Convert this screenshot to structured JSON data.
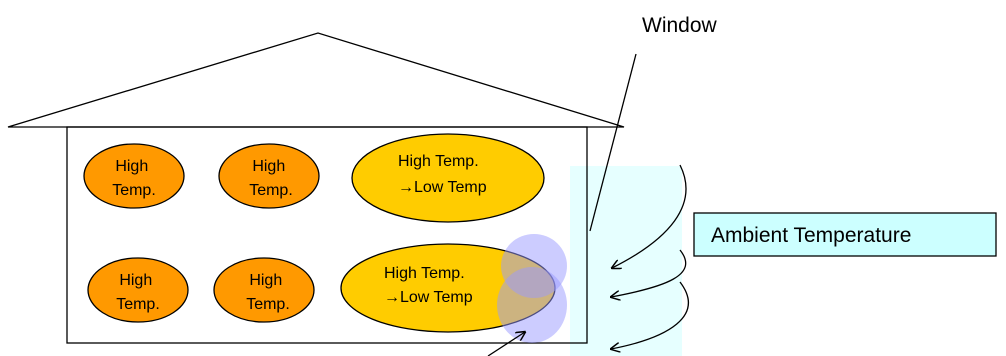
{
  "labels": {
    "window": "Window",
    "ambient_temperature": "Ambient Temperature"
  },
  "zones": {
    "top_left": {
      "line1": "High",
      "line2": "Temp."
    },
    "top_middle": {
      "line1": "High",
      "line2": "Temp."
    },
    "top_right": {
      "line1": "High Temp.",
      "line2": "→Low Temp"
    },
    "bottom_left": {
      "line1": "High",
      "line2": "Temp."
    },
    "bottom_middle": {
      "line1": "High",
      "line2": "Temp."
    },
    "bottom_right": {
      "line1": "High Temp.",
      "line2": "→Low Temp"
    }
  },
  "colors": {
    "high_temp_fill": "#FF9900",
    "transition_fill": "#FFCC00",
    "window_fill": "#E6FFFF",
    "ambient_box_fill": "#CCFFFF",
    "cold_spot_fill": "#9999FF",
    "stroke": "#000000"
  }
}
